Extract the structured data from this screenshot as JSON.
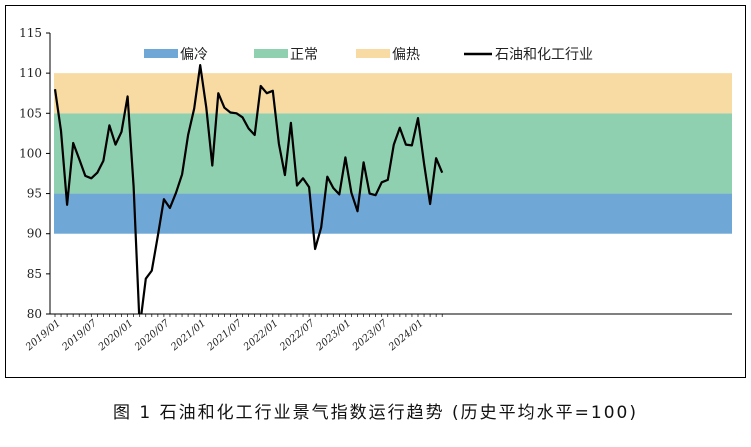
{
  "caption": "图 1  石油和化工行业景气指数运行趋势 (历史平均水平=100)",
  "chart_data": {
    "type": "line",
    "title": "",
    "xlabel": "",
    "ylabel": "",
    "ylim": [
      80,
      115
    ],
    "yticks": [
      80,
      85,
      90,
      95,
      100,
      105,
      110,
      115
    ],
    "xtick_labels": [
      "2019/01",
      "2019/07",
      "2020/01",
      "2020/07",
      "2021/01",
      "2021/07",
      "2022/01",
      "2022/07",
      "2023/01",
      "2023/07",
      "2024/01"
    ],
    "bands": [
      {
        "name": "偏冷",
        "from": 90,
        "to": 95,
        "color": "#6fa8d6"
      },
      {
        "name": "正常",
        "from": 95,
        "to": 105,
        "color": "#8fd0b0"
      },
      {
        "name": "偏热",
        "from": 105,
        "to": 110,
        "color": "#f7dba2"
      }
    ],
    "series": [
      {
        "name": "石油和化工行业",
        "color": "#000000",
        "x": [
          "2019/01",
          "2019/02",
          "2019/03",
          "2019/04",
          "2019/05",
          "2019/06",
          "2019/07",
          "2019/08",
          "2019/09",
          "2019/10",
          "2019/11",
          "2019/12",
          "2020/01",
          "2020/02",
          "2020/03",
          "2020/04",
          "2020/05",
          "2020/06",
          "2020/07",
          "2020/08",
          "2020/09",
          "2020/10",
          "2020/11",
          "2020/12",
          "2021/01",
          "2021/02",
          "2021/03",
          "2021/04",
          "2021/05",
          "2021/06",
          "2021/07",
          "2021/08",
          "2021/09",
          "2021/10",
          "2021/11",
          "2021/12",
          "2022/01",
          "2022/02",
          "2022/03",
          "2022/04",
          "2022/05",
          "2022/06",
          "2022/07",
          "2022/08",
          "2022/09",
          "2022/10",
          "2022/11",
          "2022/12",
          "2023/01",
          "2023/02",
          "2023/03",
          "2023/04",
          "2023/05",
          "2023/06",
          "2023/07",
          "2023/08",
          "2023/09",
          "2023/10",
          "2023/11",
          "2023/12",
          "2024/01",
          "2024/02",
          "2024/03",
          "2024/04",
          "2024/05"
        ],
        "values": [
          108,
          102.8,
          93.6,
          101.3,
          99.3,
          97.2,
          96.9,
          97.6,
          99.1,
          103.5,
          101.1,
          102.7,
          107.1,
          95.9,
          78.3,
          84.4,
          85.4,
          89.7,
          94.3,
          93.2,
          95.1,
          97.4,
          102.3,
          105.6,
          111.0,
          105.7,
          98.5,
          107.5,
          105.7,
          105.1,
          105.0,
          104.5,
          103.1,
          102.3,
          108.4,
          107.5,
          107.8,
          101.2,
          97.3,
          103.8,
          96.0,
          96.9,
          95.8,
          88.1,
          90.8,
          97.1,
          95.7,
          94.9,
          99.5,
          95.1,
          92.8,
          98.9,
          95.0,
          94.8,
          96.4,
          96.7,
          101.1,
          103.2,
          101.1,
          101.0,
          104.4,
          98.7,
          93.7,
          99.4,
          97.6
        ]
      }
    ],
    "legend": "top"
  }
}
